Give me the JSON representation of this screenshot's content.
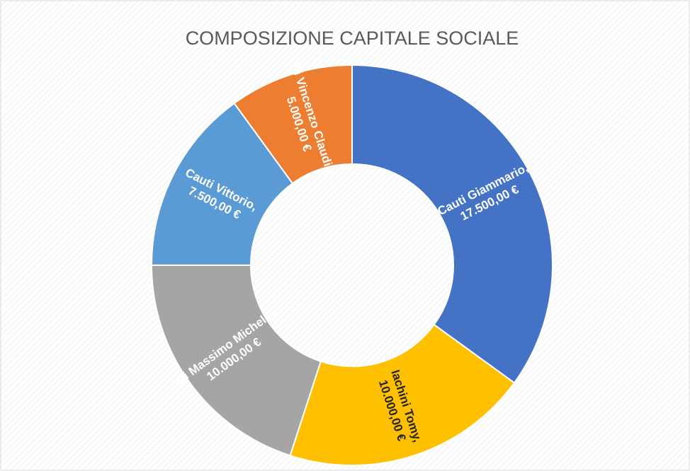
{
  "chart_data": {
    "type": "doughnut",
    "title": "COMPOSIZIONE CAPITALE SOCIALE",
    "categories": [
      "Cauti Giammario",
      "Iachini Tomy",
      "Di Massimo Michele",
      "Cauti Vittorio",
      "Di Vincenzo Claudia"
    ],
    "values": [
      17500,
      10000,
      10000,
      7500,
      5000
    ],
    "value_labels": [
      "17.500,00 €",
      "10.000,00 €",
      "10.000,00 €",
      "7.500,00 €",
      "5.000,00 €"
    ],
    "label_separator": ",",
    "colors": [
      "#4472c4",
      "#ffc000",
      "#a5a5a5",
      "#5b9bd5",
      "#ed7d31"
    ],
    "label_colors": [
      "#ffffff",
      "#262626",
      "#ffffff",
      "#ffffff",
      "#ffffff"
    ]
  }
}
